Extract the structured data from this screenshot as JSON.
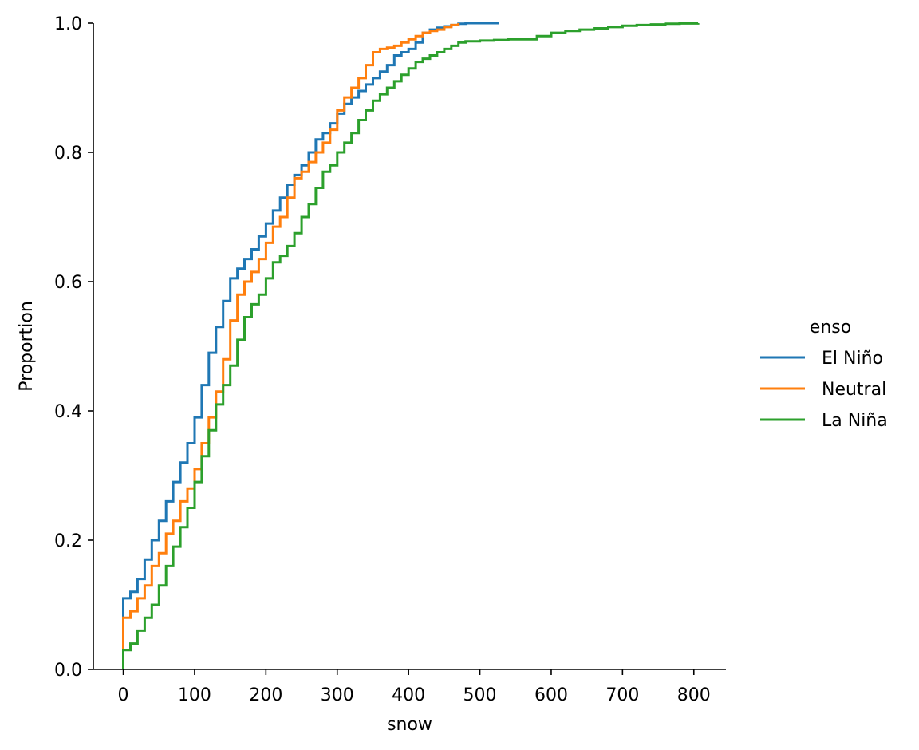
{
  "chart_data": {
    "type": "line",
    "subtype": "ecdf",
    "title": "",
    "xlabel": "snow",
    "ylabel": "Proportion",
    "xlim": [
      -42,
      845
    ],
    "ylim": [
      0,
      1
    ],
    "x_ticks": [
      0,
      100,
      200,
      300,
      400,
      500,
      600,
      700,
      800
    ],
    "y_ticks": [
      0.0,
      0.2,
      0.4,
      0.6,
      0.8,
      1.0
    ],
    "x_tick_labels": [
      "0",
      "100",
      "200",
      "300",
      "400",
      "500",
      "600",
      "700",
      "800"
    ],
    "y_tick_labels": [
      "0.0",
      "0.2",
      "0.4",
      "0.6",
      "0.8",
      "1.0"
    ],
    "grid": false,
    "legend": {
      "title": "enso",
      "placement": "right"
    },
    "series": [
      {
        "name": "El Niño",
        "color": "#1f77b4",
        "x": [
          0,
          0,
          10,
          20,
          30,
          40,
          50,
          60,
          70,
          80,
          90,
          100,
          110,
          120,
          130,
          140,
          150,
          160,
          170,
          180,
          190,
          200,
          210,
          220,
          230,
          240,
          250,
          260,
          270,
          280,
          290,
          300,
          310,
          320,
          330,
          340,
          350,
          360,
          370,
          380,
          390,
          400,
          410,
          420,
          430,
          440,
          450,
          460,
          470,
          480,
          527
        ],
        "y": [
          0,
          0.11,
          0.12,
          0.14,
          0.17,
          0.2,
          0.23,
          0.26,
          0.29,
          0.32,
          0.35,
          0.39,
          0.44,
          0.49,
          0.53,
          0.57,
          0.605,
          0.62,
          0.635,
          0.65,
          0.67,
          0.69,
          0.71,
          0.73,
          0.75,
          0.765,
          0.78,
          0.8,
          0.82,
          0.83,
          0.845,
          0.86,
          0.875,
          0.885,
          0.895,
          0.905,
          0.915,
          0.925,
          0.935,
          0.95,
          0.955,
          0.96,
          0.97,
          0.985,
          0.99,
          0.993,
          0.995,
          0.997,
          0.999,
          1.0,
          1.0
        ]
      },
      {
        "name": "Neutral",
        "color": "#ff7f0e",
        "x": [
          0,
          0,
          10,
          20,
          30,
          40,
          50,
          60,
          70,
          80,
          90,
          100,
          110,
          120,
          130,
          140,
          150,
          160,
          170,
          180,
          190,
          200,
          210,
          220,
          230,
          240,
          250,
          260,
          270,
          280,
          290,
          300,
          310,
          320,
          330,
          340,
          350,
          360,
          370,
          380,
          390,
          400,
          410,
          420,
          430,
          440,
          450,
          460,
          470
        ],
        "y": [
          0,
          0.08,
          0.09,
          0.11,
          0.13,
          0.16,
          0.18,
          0.21,
          0.23,
          0.26,
          0.28,
          0.31,
          0.35,
          0.39,
          0.43,
          0.48,
          0.54,
          0.58,
          0.6,
          0.615,
          0.635,
          0.66,
          0.685,
          0.7,
          0.73,
          0.76,
          0.77,
          0.785,
          0.8,
          0.815,
          0.835,
          0.865,
          0.885,
          0.9,
          0.915,
          0.935,
          0.955,
          0.96,
          0.962,
          0.965,
          0.97,
          0.975,
          0.98,
          0.985,
          0.988,
          0.99,
          0.994,
          0.997,
          1.0
        ]
      },
      {
        "name": "La Niña",
        "color": "#2ca02c",
        "x": [
          0,
          0,
          10,
          20,
          30,
          40,
          50,
          60,
          70,
          80,
          90,
          100,
          110,
          120,
          130,
          140,
          150,
          160,
          170,
          180,
          190,
          200,
          210,
          220,
          230,
          240,
          250,
          260,
          270,
          280,
          290,
          300,
          310,
          320,
          330,
          340,
          350,
          360,
          370,
          380,
          390,
          400,
          410,
          420,
          430,
          440,
          450,
          460,
          470,
          480,
          500,
          520,
          540,
          560,
          580,
          600,
          620,
          640,
          660,
          680,
          700,
          720,
          740,
          760,
          780,
          806
        ],
        "y": [
          0,
          0.03,
          0.04,
          0.06,
          0.08,
          0.1,
          0.13,
          0.16,
          0.19,
          0.22,
          0.25,
          0.29,
          0.33,
          0.37,
          0.41,
          0.44,
          0.47,
          0.51,
          0.545,
          0.565,
          0.58,
          0.605,
          0.63,
          0.64,
          0.655,
          0.675,
          0.7,
          0.72,
          0.745,
          0.77,
          0.78,
          0.8,
          0.815,
          0.83,
          0.85,
          0.865,
          0.88,
          0.89,
          0.9,
          0.91,
          0.92,
          0.93,
          0.94,
          0.945,
          0.95,
          0.955,
          0.96,
          0.965,
          0.97,
          0.972,
          0.973,
          0.974,
          0.975,
          0.975,
          0.98,
          0.985,
          0.988,
          0.99,
          0.992,
          0.994,
          0.996,
          0.997,
          0.998,
          0.999,
          0.9995,
          1.0
        ]
      }
    ]
  }
}
